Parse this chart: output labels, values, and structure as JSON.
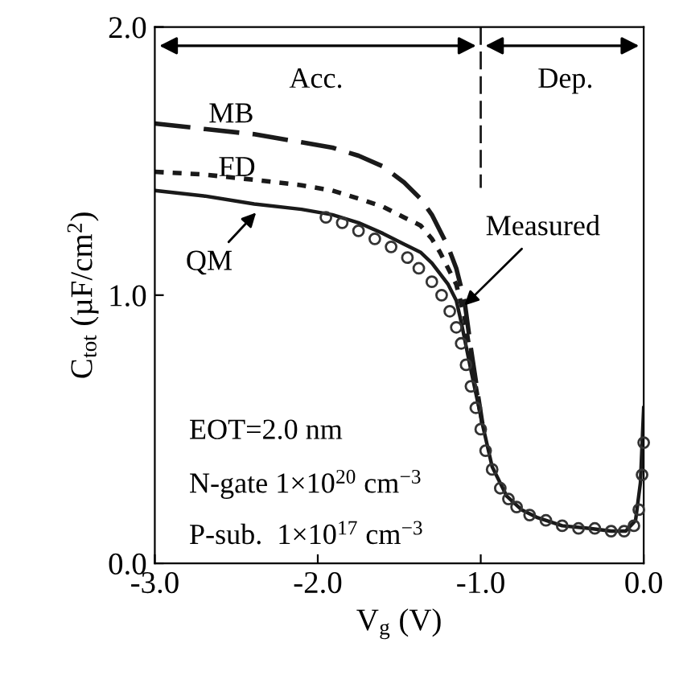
{
  "chart_data": {
    "type": "line",
    "xlabel": "V$_{g}$ (V)",
    "ylabel": "C$_{tot}$ (µF/cm$^{2}$)",
    "xlim": [
      -3.0,
      0.0
    ],
    "ylim": [
      0.0,
      2.0
    ],
    "xticks": [
      {
        "value": -3.0,
        "label": "-3.0"
      },
      {
        "value": -2.0,
        "label": "-2.0"
      },
      {
        "value": -1.0,
        "label": "-1.0"
      },
      {
        "value": 0.0,
        "label": "0.0"
      }
    ],
    "yticks": [
      {
        "value": 0.0,
        "label": "0.0"
      },
      {
        "value": 1.0,
        "label": "1.0"
      },
      {
        "value": 2.0,
        "label": "2.0"
      }
    ],
    "grid": false,
    "series": [
      {
        "color": "#1a1a1a",
        "line_style": "dashed",
        "x": [
          -3.0,
          -2.7,
          -2.39,
          -2.1,
          -1.91,
          -1.75,
          -1.6,
          -1.47,
          -1.37,
          -1.3,
          -1.25,
          -1.2,
          -1.15,
          -1.1,
          -1.06,
          -0.99
        ],
        "values": [
          1.64,
          1.62,
          1.6,
          1.57,
          1.55,
          1.52,
          1.48,
          1.42,
          1.36,
          1.3,
          1.24,
          1.18,
          1.1,
          0.98,
          0.8,
          0.52
        ]
      },
      {
        "color": "#1a1a1a",
        "line_style": "dotted",
        "x": [
          -3.0,
          -2.7,
          -2.39,
          -2.1,
          -1.91,
          -1.75,
          -1.6,
          -1.47,
          -1.37,
          -1.3,
          -1.25,
          -1.2,
          -1.15,
          -1.1,
          -1.06,
          -0.99
        ],
        "values": [
          1.46,
          1.45,
          1.43,
          1.41,
          1.39,
          1.36,
          1.33,
          1.29,
          1.26,
          1.21,
          1.16,
          1.1,
          1.04,
          0.92,
          0.76,
          0.52
        ]
      },
      {
        "color": "#1a1a1a",
        "line_style": "solid",
        "x": [
          -3.0,
          -2.7,
          -2.39,
          -2.1,
          -1.91,
          -1.75,
          -1.6,
          -1.47,
          -1.37,
          -1.3,
          -1.25,
          -1.2,
          -1.15,
          -1.12,
          -1.06,
          -0.99,
          -0.93,
          -0.84,
          -0.75,
          -0.65,
          -0.5,
          -0.33,
          -0.2,
          -0.11,
          -0.05,
          -0.02,
          0.0
        ],
        "values": [
          1.39,
          1.37,
          1.34,
          1.32,
          1.3,
          1.27,
          1.23,
          1.19,
          1.16,
          1.12,
          1.08,
          1.04,
          0.98,
          0.9,
          0.72,
          0.52,
          0.36,
          0.25,
          0.2,
          0.17,
          0.14,
          0.13,
          0.12,
          0.12,
          0.16,
          0.3,
          0.58
        ]
      },
      {
        "type": "scatter",
        "marker": "circle",
        "color": "#333333",
        "x": [
          -1.95,
          -1.85,
          -1.75,
          -1.65,
          -1.55,
          -1.45,
          -1.38,
          -1.3,
          -1.24,
          -1.19,
          -1.15,
          -1.12,
          -1.09,
          -1.06,
          -1.03,
          -1.0,
          -0.97,
          -0.93,
          -0.88,
          -0.83,
          -0.78,
          -0.7,
          -0.6,
          -0.5,
          -0.4,
          -0.3,
          -0.2,
          -0.12,
          -0.06,
          -0.03,
          -0.01,
          0.0
        ],
        "values": [
          1.29,
          1.27,
          1.24,
          1.21,
          1.18,
          1.14,
          1.1,
          1.05,
          1.0,
          0.94,
          0.88,
          0.82,
          0.74,
          0.66,
          0.58,
          0.5,
          0.42,
          0.35,
          0.28,
          0.24,
          0.21,
          0.18,
          0.16,
          0.14,
          0.13,
          0.13,
          0.12,
          0.12,
          0.14,
          0.2,
          0.33,
          0.45
        ]
      }
    ],
    "ref_lines": [
      {
        "axis": "x",
        "value": -1.0,
        "line_style": "dashed",
        "color": "#1a1a1a"
      }
    ],
    "annotations": [
      "Acc.",
      "Dep.",
      "MB",
      "FD",
      {
        "text": "QM",
        "x": -2.36,
        "y": 1.32
      },
      {
        "text": "Measured",
        "x": -1.12,
        "y": 0.95
      },
      {
        "text": "EOT=2.0 nm"
      },
      {
        "text": "N-gate 1×10$^{20}$ cm$^{−3}$"
      },
      {
        "text": "P-sub.  1×10$^{17}$ cm$^{−3}$"
      }
    ]
  }
}
